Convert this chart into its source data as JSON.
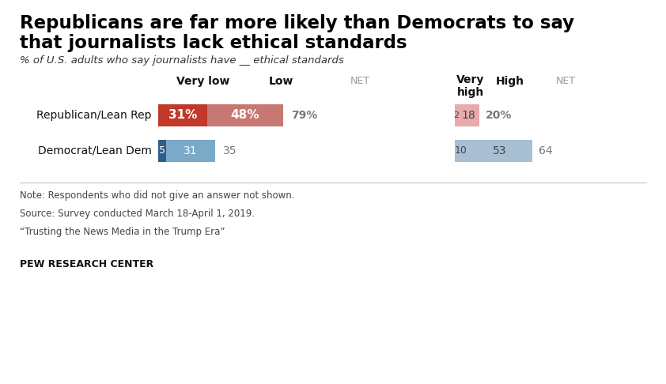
{
  "title_line1": "Republicans are far more likely than Democrats to say",
  "title_line2": "that journalists lack ethical standards",
  "subtitle": "% of U.S. adults who say journalists have __ ethical standards",
  "rows": [
    {
      "label": "Republican/Lean Rep",
      "very_low": 31,
      "low": 48,
      "net_low": "79%",
      "very_high": 2,
      "high": 18,
      "net_high": "20%",
      "rep": true
    },
    {
      "label": "Democrat/Lean Dem",
      "very_low": 5,
      "low": 31,
      "net_low": "35",
      "very_high": 10,
      "high": 53,
      "net_high": "64",
      "rep": false
    }
  ],
  "colors": {
    "rep_very_low": "#c0392b",
    "rep_low": "#c87872",
    "rep_very_high": "#e8aaaa",
    "rep_high": "#e8aaaa",
    "dem_very_low": "#2e5f8a",
    "dem_low": "#7baac8",
    "dem_very_high": "#a8bfd4",
    "dem_high": "#a8bfd4"
  },
  "col_headers": {
    "very_low": "Very low",
    "low": "Low",
    "net_left": "NET",
    "very_high_line1": "Very",
    "very_high_line2": "high",
    "high": "High",
    "net_right": "NET"
  },
  "notes": [
    "Note: Respondents who did not give an answer not shown.",
    "Source: Survey conducted March 18-April 1, 2019.",
    "“Trusting the News Media in the Trump Era”"
  ],
  "footer": "PEW RESEARCH CENTER",
  "background_color": "#ffffff"
}
